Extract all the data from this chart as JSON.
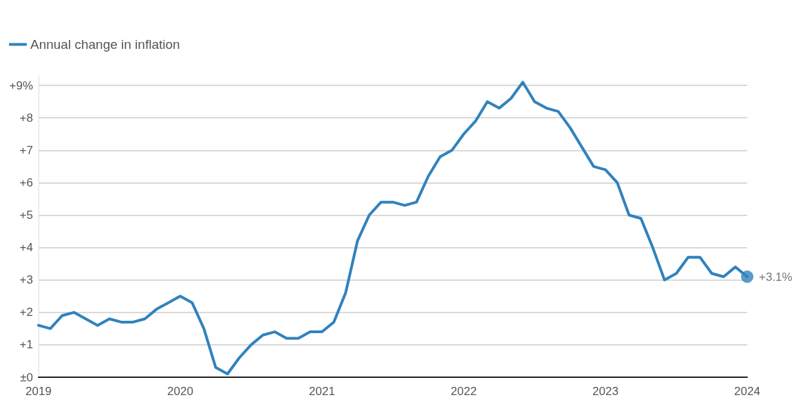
{
  "chart_data": {
    "type": "line",
    "categories": [
      "2019",
      null,
      null,
      null,
      null,
      null,
      null,
      null,
      null,
      null,
      null,
      null,
      "2020",
      null,
      null,
      null,
      null,
      null,
      null,
      null,
      null,
      null,
      null,
      null,
      "2021",
      null,
      null,
      null,
      null,
      null,
      null,
      null,
      null,
      null,
      null,
      null,
      "2022",
      null,
      null,
      null,
      null,
      null,
      null,
      null,
      null,
      null,
      null,
      null,
      "2023",
      null,
      null,
      null,
      null,
      null,
      null,
      null,
      null,
      null,
      null,
      null,
      "2024"
    ],
    "series": [
      {
        "name": "Annual change in inflation",
        "color": "#3182bd",
        "values": [
          1.6,
          1.5,
          1.9,
          2.0,
          1.8,
          1.6,
          1.8,
          1.7,
          1.7,
          1.8,
          2.1,
          2.3,
          2.5,
          2.3,
          1.5,
          0.3,
          0.1,
          0.6,
          1.0,
          1.3,
          1.4,
          1.2,
          1.2,
          1.4,
          1.4,
          1.7,
          2.6,
          4.2,
          5.0,
          5.4,
          5.4,
          5.3,
          5.4,
          6.2,
          6.8,
          7.0,
          7.5,
          7.9,
          8.5,
          8.3,
          8.6,
          9.1,
          8.5,
          8.3,
          8.2,
          7.7,
          7.1,
          6.5,
          6.4,
          6.0,
          5.0,
          4.9,
          4.0,
          3.0,
          3.2,
          3.7,
          3.7,
          3.2,
          3.1,
          3.4,
          3.1
        ]
      }
    ],
    "ylim": [
      0,
      9.3
    ],
    "yticks": [
      {
        "value": 0,
        "label": "±0"
      },
      {
        "value": 1,
        "label": "+1"
      },
      {
        "value": 2,
        "label": "+2"
      },
      {
        "value": 3,
        "label": "+3"
      },
      {
        "value": 4,
        "label": "+4"
      },
      {
        "value": 5,
        "label": "+5"
      },
      {
        "value": 6,
        "label": "+6"
      },
      {
        "value": 7,
        "label": "+7"
      },
      {
        "value": 8,
        "label": "+8"
      },
      {
        "value": 9,
        "label": "+9%"
      }
    ],
    "annotations": [
      {
        "text": "+3.1%",
        "x": "2024",
        "y": 3.1
      }
    ],
    "grid": "y",
    "legend": "top left",
    "marker": "none",
    "line_style": "solid"
  }
}
